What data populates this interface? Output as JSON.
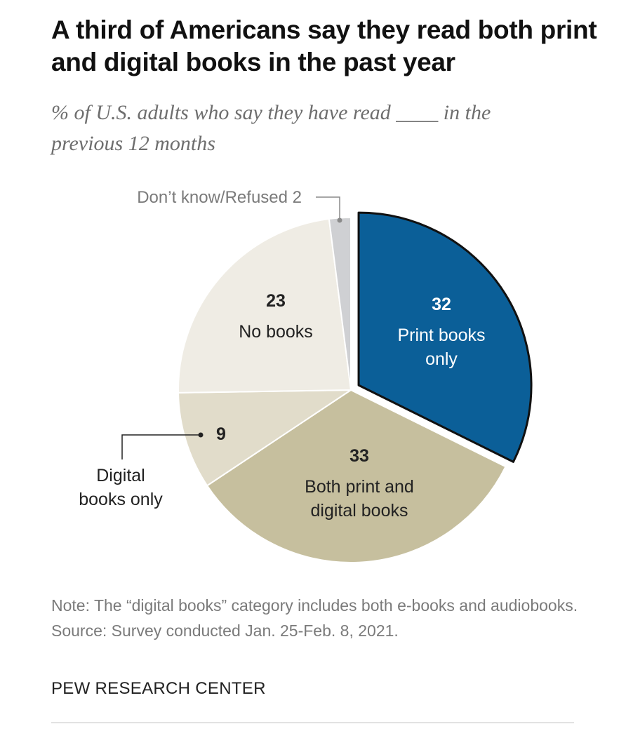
{
  "header": {
    "title": "A third of Americans say they read both print and digital books in the past year",
    "subtitle": "% of U.S. adults who say they have read ____ in the previous 12 months"
  },
  "chart_data": {
    "type": "pie",
    "title": "A third of Americans say they read both print and digital books in the past year",
    "subtitle": "% of U.S. adults who say they have read ____ in the previous 12 months",
    "slices": [
      {
        "key": "print",
        "label": "Print books only",
        "value": 32,
        "color": "#0b5f98",
        "exploded": true
      },
      {
        "key": "both",
        "label": "Both print and digital books",
        "value": 33,
        "color": "#c6bf9e"
      },
      {
        "key": "digital",
        "label": "Digital books only",
        "value": 9,
        "color": "#e1dcca"
      },
      {
        "key": "none",
        "label": "No books",
        "value": 23,
        "color": "#efece4"
      },
      {
        "key": "dk",
        "label": "Don’t know/Refused",
        "value": 2,
        "color": "#cfd0d3"
      }
    ],
    "labels": {
      "print": {
        "value": "32",
        "lines": [
          "Print books",
          "only"
        ]
      },
      "both": {
        "value": "33",
        "lines": [
          "Both print and",
          "digital books"
        ]
      },
      "digital": {
        "value": "9",
        "lines": [
          "Digital",
          "books only"
        ]
      },
      "none": {
        "value": "23",
        "lines": [
          "No books"
        ]
      },
      "dk": {
        "text": "Don’t know/Refused  2"
      }
    }
  },
  "footer": {
    "note": "Note: The “digital books” category includes both e-books and audiobooks.",
    "source": "Source: Survey conducted Jan. 25-Feb. 8, 2021.",
    "credit": "PEW RESEARCH CENTER"
  }
}
